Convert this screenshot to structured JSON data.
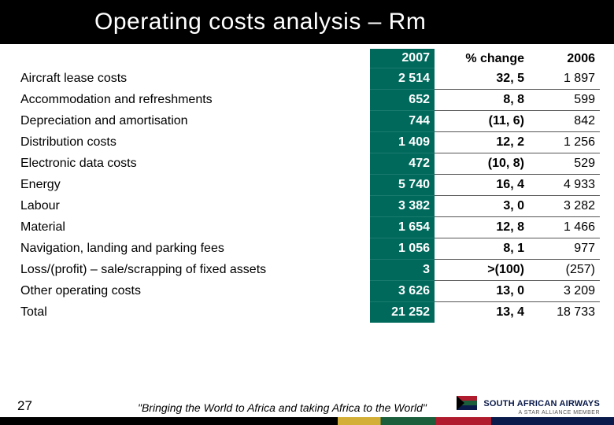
{
  "title": "Operating costs analysis – Rm",
  "columns": [
    "2007",
    "% change",
    "2006"
  ],
  "rows": [
    {
      "label": "Aircraft lease costs",
      "y2007": "2 514",
      "change": "32, 5",
      "y2006": "1 897"
    },
    {
      "label": "Accommodation and refreshments",
      "y2007": "652",
      "change": "8, 8",
      "y2006": "599"
    },
    {
      "label": "Depreciation and amortisation",
      "y2007": "744",
      "change": "(11, 6)",
      "y2006": "842"
    },
    {
      "label": "Distribution costs",
      "y2007": "1 409",
      "change": "12, 2",
      "y2006": "1 256"
    },
    {
      "label": "Electronic data costs",
      "y2007": "472",
      "change": "(10, 8)",
      "y2006": "529"
    },
    {
      "label": "Energy",
      "y2007": "5 740",
      "change": "16, 4",
      "y2006": "4 933"
    },
    {
      "label": "Labour",
      "y2007": "3 382",
      "change": "3, 0",
      "y2006": "3 282"
    },
    {
      "label": "Material",
      "y2007": "1 654",
      "change": "12, 8",
      "y2006": "1 466"
    },
    {
      "label": "Navigation, landing and parking fees",
      "y2007": "1 056",
      "change": "8, 1",
      "y2006": "977"
    },
    {
      "label": "Loss/(profit) – sale/scrapping of fixed assets",
      "y2007": "3",
      "change": ">(100)",
      "y2006": "(257)"
    },
    {
      "label": "Other operating costs",
      "y2007": "3 626",
      "change": "13, 0",
      "y2006": "3 209"
    },
    {
      "label": "Total",
      "y2007": "21 252",
      "change": "13, 4",
      "y2006": "18 733"
    }
  ],
  "footer": {
    "page": "27",
    "slogan": "\"Bringing the World to Africa and taking Africa to the World\"",
    "brand_main": "SOUTH AFRICAN AIRWAYS",
    "brand_sub": "A STAR ALLIANCE MEMBER"
  },
  "colors": {
    "title_bg": "#000000",
    "title_text": "#ffffff",
    "hl_col_bg": "#00695c",
    "hl_col_text": "#ffffff",
    "row_border": "#555555",
    "text": "#000000"
  }
}
